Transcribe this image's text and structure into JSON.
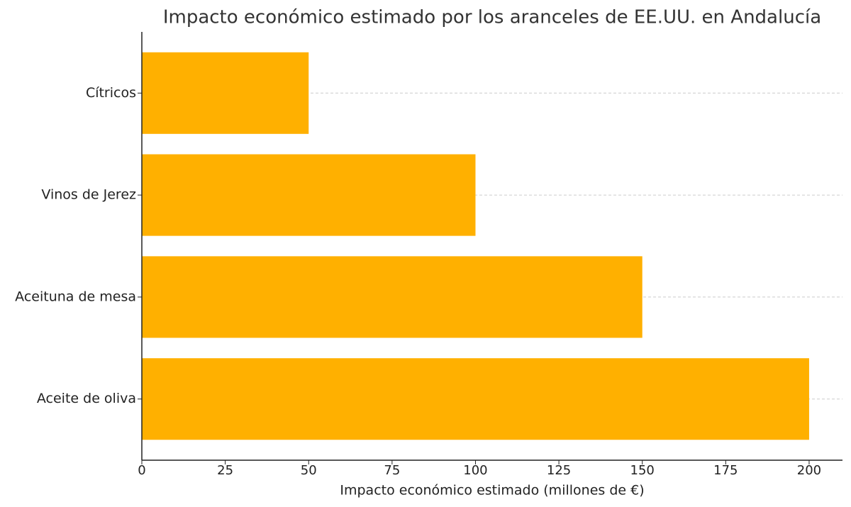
{
  "chart_data": {
    "type": "barh",
    "title": "Impacto económico estimado por los aranceles de EE.UU. en Andalucía",
    "x_label": "Impacto económico estimado (millones de €)",
    "categories": [
      "Aceite de oliva",
      "Aceituna de mesa",
      "Vinos de Jerez",
      "Cítricos"
    ],
    "values": [
      200,
      150,
      100,
      50
    ],
    "color": "#ffb000",
    "xlim": [
      0,
      210
    ],
    "xticks": [
      0,
      25,
      50,
      75,
      100,
      125,
      150,
      175,
      200
    ],
    "grid": true
  }
}
